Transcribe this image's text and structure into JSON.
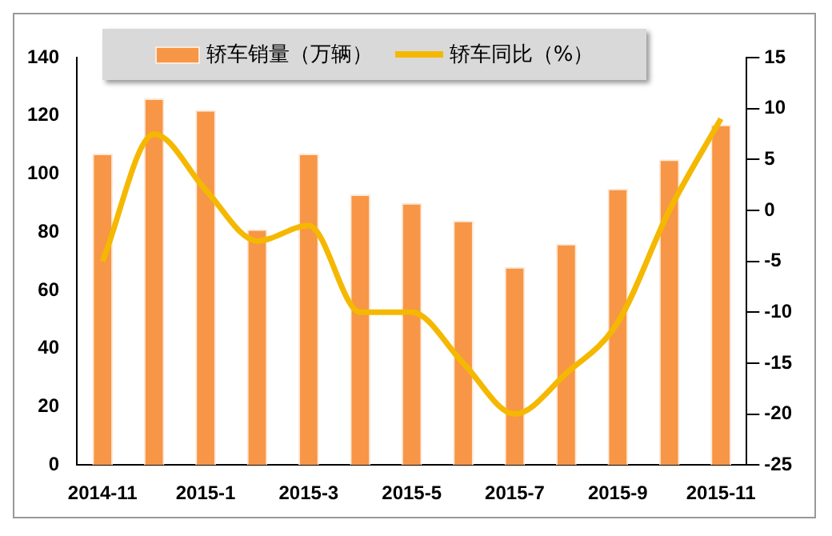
{
  "chart_data": {
    "type": "bar",
    "categories": [
      "2014-11",
      null,
      "2015-1",
      null,
      "2015-3",
      null,
      "2015-5",
      null,
      "2015-7",
      null,
      "2015-9",
      null,
      "2015-11"
    ],
    "series": [
      {
        "name": "轿车销量（万辆）",
        "color": "#f79646",
        "values": [
          107,
          126,
          122,
          81,
          107,
          93,
          90,
          84,
          68,
          76,
          95,
          105,
          117
        ]
      },
      {
        "name": "轿车同比（%）",
        "type": "line",
        "axis": "y2",
        "color": "#f5b800",
        "values": [
          -5,
          7.5,
          2,
          -3,
          -1.5,
          -10,
          -10,
          -15,
          -20,
          -16,
          -11,
          0,
          9
        ]
      }
    ],
    "ylim": [
      0,
      140
    ],
    "yticks": [
      0,
      20,
      40,
      60,
      80,
      100,
      120,
      140
    ],
    "y2lim": [
      -25,
      15
    ],
    "y2ticks": [
      -25,
      -20,
      -15,
      -10,
      -5,
      0,
      5,
      10,
      15
    ],
    "grid": false,
    "legend": "top",
    "marker": "none"
  }
}
